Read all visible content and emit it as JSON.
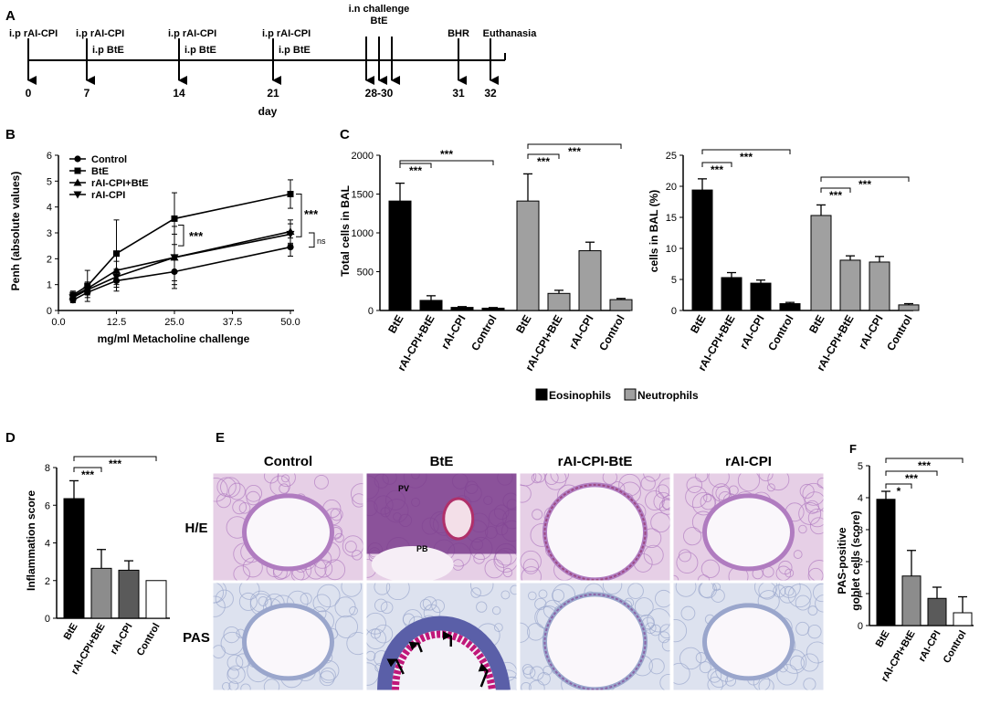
{
  "panels": {
    "A": {
      "letter": "A",
      "day_label": "day",
      "ticks": [
        "0",
        "7",
        "14",
        "21",
        "28-30",
        "31",
        "32"
      ],
      "events": [
        {
          "top": "i.p rAI-CPI",
          "bottom": ""
        },
        {
          "top": "i.p rAI-CPI",
          "bottom": "i.p BtE"
        },
        {
          "top": "i.p rAI-CPI",
          "bottom": "i.p BtE"
        },
        {
          "top": "i.p rAI-CPI",
          "bottom": "i.p BtE"
        },
        {
          "top": "i.n challenge",
          "top2": "BtE"
        },
        {
          "top": "BHR"
        },
        {
          "top": "Euthanasia"
        }
      ]
    },
    "B": {
      "letter": "B",
      "sig": "***",
      "ns": "ns"
    },
    "C": {
      "letter": "C",
      "legend": [
        "Eosinophils",
        "Neutrophils"
      ],
      "sig": "***"
    },
    "D": {
      "letter": "D",
      "sig": "***"
    },
    "E": {
      "letter": "E",
      "columns": [
        "Control",
        "BtE",
        "rAI-CPI-BtE",
        "rAI-CPI"
      ],
      "rows": [
        "H/E",
        "PAS"
      ],
      "labels": {
        "pv": "PV",
        "pb": "PB"
      }
    },
    "F": {
      "letter": "F",
      "sig1": "*",
      "sig": "***"
    }
  },
  "colors": {
    "eosinophils": "#000000",
    "neutrophils": "#a0a0a0",
    "he_stain": "#b07cc0",
    "pas_stain": "#9aa6cc",
    "pas_positive": "#c0187a"
  },
  "chart_data": [
    {
      "panel": "B",
      "type": "line",
      "xlabel": "mg/ml Metacholine challenge",
      "ylabel": "Penh (absolute values)",
      "xlim": [
        0,
        50
      ],
      "ylim": [
        0,
        6
      ],
      "xticks": [
        "0.0",
        "12.5",
        "25.0",
        "37.5",
        "50.0"
      ],
      "yticks": [
        "0",
        "1",
        "2",
        "3",
        "4",
        "5",
        "6"
      ],
      "legend_position": "top-left",
      "x": [
        3.125,
        6.25,
        12.5,
        25.0,
        50.0
      ],
      "series": [
        {
          "name": "Control",
          "marker": "circle",
          "values": [
            0.4,
            0.7,
            1.15,
            1.5,
            2.45
          ],
          "errors": [
            0.1,
            0.2,
            0.4,
            0.5,
            0.35
          ]
        },
        {
          "name": "BtE",
          "marker": "square",
          "values": [
            0.6,
            0.95,
            2.2,
            3.55,
            4.5
          ],
          "errors": [
            0.15,
            0.6,
            1.3,
            1.0,
            0.55
          ]
        },
        {
          "name": "rAI-CPI+BtE",
          "marker": "triangle-up",
          "values": [
            0.55,
            0.85,
            1.55,
            2.05,
            3.05
          ],
          "errors": [
            0.1,
            0.25,
            0.35,
            1.2,
            0.45
          ]
        },
        {
          "name": "rAI-CPI",
          "marker": "triangle-down",
          "values": [
            0.5,
            0.8,
            1.3,
            2.05,
            2.95
          ],
          "errors": [
            0.1,
            0.2,
            0.3,
            0.9,
            0.4
          ]
        }
      ]
    },
    {
      "panel": "C-left",
      "type": "bar",
      "ylabel": "Total cells in BAL",
      "ylim": [
        0,
        2000
      ],
      "yticks": [
        "0",
        "500",
        "1000",
        "1500",
        "2000"
      ],
      "categories": [
        "BtE",
        "rAI-CPI+BtE",
        "rAI-CPI",
        "Control",
        "BtE",
        "rAI-CPI+BtE",
        "rAI-CPI",
        "Control"
      ],
      "groups": [
        "Eosinophils",
        "Eosinophils",
        "Eosinophils",
        "Eosinophils",
        "Neutrophils",
        "Neutrophils",
        "Neutrophils",
        "Neutrophils"
      ],
      "values": [
        1410,
        130,
        40,
        30,
        1410,
        220,
        770,
        140
      ],
      "errors": [
        230,
        60,
        10,
        8,
        350,
        40,
        110,
        15
      ]
    },
    {
      "panel": "C-right",
      "type": "bar",
      "ylabel": "cells in BAL (%)",
      "ylim": [
        0,
        25
      ],
      "yticks": [
        "0",
        "5",
        "10",
        "15",
        "20",
        "25"
      ],
      "categories": [
        "BtE",
        "rAI-CPI+BtE",
        "rAI-CPI",
        "Control",
        "BtE",
        "rAI-CPI+BtE",
        "rAI-CPI",
        "Control"
      ],
      "groups": [
        "Eosinophils",
        "Eosinophils",
        "Eosinophils",
        "Eosinophils",
        "Neutrophils",
        "Neutrophils",
        "Neutrophils",
        "Neutrophils"
      ],
      "values": [
        19.4,
        5.3,
        4.4,
        1.1,
        15.3,
        8.1,
        7.8,
        0.9
      ],
      "errors": [
        1.8,
        0.8,
        0.5,
        0.2,
        1.7,
        0.7,
        0.9,
        0.2
      ]
    },
    {
      "panel": "D",
      "type": "bar",
      "ylabel": "Inflammation score",
      "ylim": [
        0,
        8
      ],
      "yticks": [
        "0",
        "2",
        "4",
        "6",
        "8"
      ],
      "categories": [
        "BtE",
        "rAI-CPI+BtE",
        "rAI-CPI",
        "Control"
      ],
      "values": [
        6.35,
        2.65,
        2.55,
        2.0
      ],
      "errors": [
        0.95,
        1.0,
        0.5,
        0
      ],
      "colors": [
        "#000000",
        "#8c8c8c",
        "#5a5a5a",
        "#ffffff"
      ]
    },
    {
      "panel": "F",
      "type": "bar",
      "ylabel": "PAS-positive goblet cells (score)",
      "ylim": [
        0,
        5
      ],
      "yticks": [
        "0",
        "1",
        "2",
        "3",
        "4",
        "5"
      ],
      "categories": [
        "BtE",
        "rAI-CPI+BtE",
        "rAI-CPI",
        "Control"
      ],
      "values": [
        3.95,
        1.55,
        0.85,
        0.4
      ],
      "errors": [
        0.25,
        0.8,
        0.35,
        0.5
      ],
      "colors": [
        "#000000",
        "#8c8c8c",
        "#5a5a5a",
        "#ffffff"
      ]
    }
  ]
}
